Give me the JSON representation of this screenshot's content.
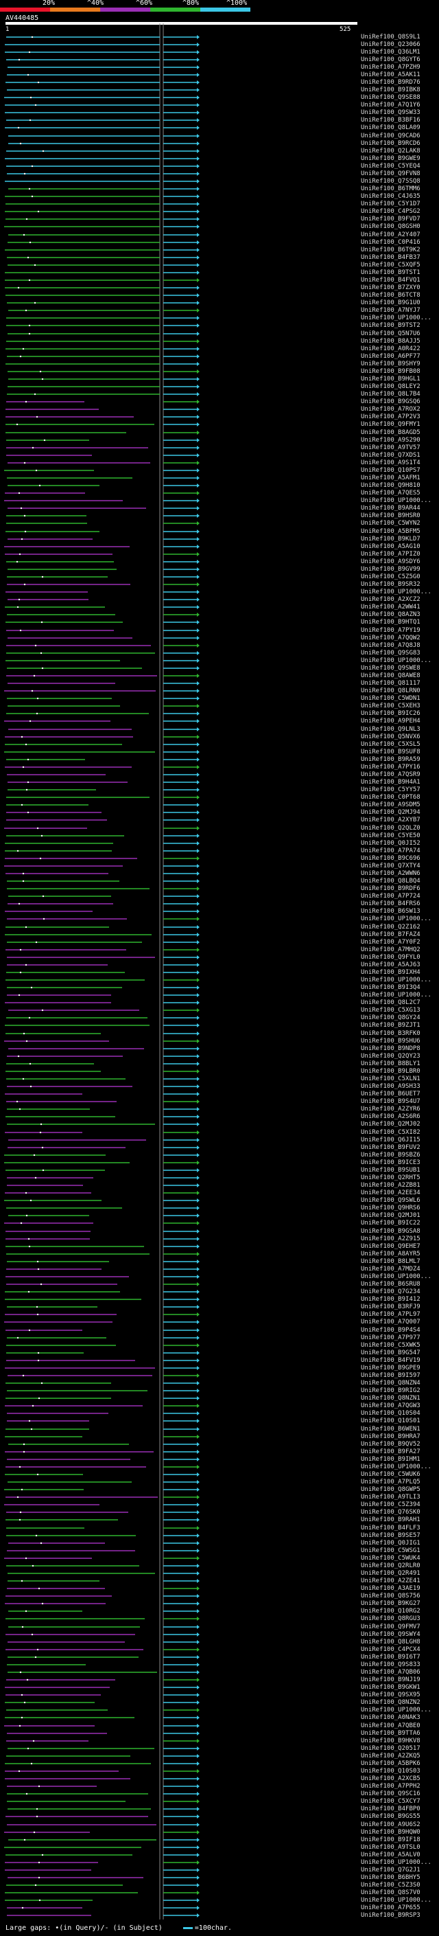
{
  "legend": {
    "labels": [
      "20%",
      "^40%",
      "^60%",
      "^80%",
      "^100%"
    ],
    "colors": [
      "#e8142a",
      "#e87a1e",
      "#9b2fb5",
      "#2fb52f",
      "#3cc7e6"
    ]
  },
  "query": {
    "name": "AV440485",
    "start": "1",
    "end": "525"
  },
  "hits": [
    "UniRef100_Q8S9L1",
    "UniRef100_Q23066",
    "UniRef100_Q36LM1",
    "UniRef100_Q8GYT6",
    "UniRef100_A7PZH9",
    "UniRef100_A5AK11",
    "UniRef100_B9RD76",
    "UniRef100_B9IBK8",
    "UniRef100_Q9SE88",
    "UniRef100_A7Q1Y6",
    "UniRef100_Q9SW33",
    "UniRef100_B3BF16",
    "UniRef100_Q8LA09",
    "UniRef100_Q9CAD6",
    "UniRef100_B9RCD6",
    "UniRef100_Q2LAK8",
    "UniRef100_B9GWE9",
    "UniRef100_C5YEQ4",
    "UniRef100_Q9FVN8",
    "UniRef100_Q7SSQ8",
    "UniRef100_B6TMM6",
    "UniRef100_C4J635",
    "UniRef100_C5Y1D7",
    "UniRef100_C4PSG2",
    "UniRef100_B9FVD7",
    "UniRef100_Q8GSH0",
    "UniRef100_A2Y407",
    "UniRef100_C0P416",
    "UniRef100_B6T9K2",
    "UniRef100_B4FB37",
    "UniRef100_C5XQF5",
    "UniRef100_B9TST1",
    "UniRef100_B4FVQ1",
    "UniRef100_B7ZXY0",
    "UniRef100_B6TCT8",
    "UniRef100_B9G1U0",
    "UniRef100_A7NYJ7",
    "UniRef100_UP1000...",
    "UniRef100_B9TST2",
    "UniRef100_Q5N7U6",
    "UniRef100_B8AJJ5",
    "UniRef100_A0R422",
    "UniRef100_A6PF77",
    "UniRef100_B9SHY9",
    "UniRef100_B9FB08",
    "UniRef100_B9HGL1",
    "UniRef100_Q8LEY2",
    "UniRef100_Q8L7B4",
    "UniRef100_B9GSQ6",
    "UniRef100_A7ROX2",
    "UniRef100_A7P2V3",
    "UniRef100_Q9FMY1",
    "UniRef100_B8AGD5",
    "UniRef100_A9S290",
    "UniRef100_A9TV57",
    "UniRef100_Q7XDS1",
    "UniRef100_A9S1T4",
    "UniRef100_Q10PS7",
    "UniRef100_A5AFM1",
    "UniRef100_Q9H810",
    "UniRef100_A7QES5",
    "UniRef100_UP1000...",
    "UniRef100_B9AR44",
    "UniRef100_B9HSR0",
    "UniRef100_C5WYN2",
    "UniRef100_A5BFM5",
    "UniRef100_B9KLD7",
    "UniRef100_A5AG10",
    "UniRef100_A7PIZ0",
    "UniRef100_A9SDY6",
    "UniRef100_B9GV99",
    "UniRef100_C5Z5G0",
    "UniRef100_B9SR32",
    "UniRef100_UP1000...",
    "UniRef100_A2XCZ2",
    "UniRef100_A2WW41",
    "UniRef100_Q8AZN3",
    "UniRef100_B9HTQ1",
    "UniRef100_A7PY19",
    "UniRef100_A7QQW2",
    "UniRef100_A7Q8J8",
    "UniRef100_Q9SG83",
    "UniRef100_UP1000...",
    "UniRef100_Q9SWE8",
    "UniRef100_Q8AWE8",
    "UniRef100_Q81117",
    "UniRef100_Q8LRN0",
    "UniRef100_C5WDN1",
    "UniRef100_C5XEH3",
    "UniRef100_B9IC26",
    "UniRef100_A9PEH4",
    "UniRef100_Q9LNL3",
    "UniRef100_Q5NVX6",
    "UniRef100_C5XSL5",
    "UniRef100_B9SUF8",
    "UniRef100_B9RA59",
    "UniRef100_A7PY16",
    "UniRef100_A7QSR9",
    "UniRef100_B9H4A1",
    "UniRef100_C5YY57",
    "UniRef100_C0PT68",
    "UniRef100_A9SDM5",
    "UniRef100_Q2MJ94",
    "UniRef100_A2XYB7",
    "UniRef100_Q2QLZ0",
    "UniRef100_C5YE50",
    "UniRef100_Q0JI52",
    "UniRef100_A7PA74",
    "UniRef100_B9C696",
    "UniRef100_Q7XTY4",
    "UniRef100_A2WWN6",
    "UniRef100_Q8LBQ4",
    "UniRef100_B9RDF6",
    "UniRef100_A7P724",
    "UniRef100_B4FRS6",
    "UniRef100_B6SW13",
    "UniRef100_UP1000...",
    "UniRef100_Q2Z162",
    "UniRef100_B7FAZ4",
    "UniRef100_A7Y0F2",
    "UniRef100_A7MHQ2",
    "UniRef100_Q9FYL0",
    "UniRef100_A5AJ63",
    "UniRef100_B9IXH4",
    "UniRef100_UP1000...",
    "UniRef100_B9I3Q4",
    "UniRef100_UP1000...",
    "UniRef100_Q8L2C7",
    "UniRef100_C5XG13",
    "UniRef100_Q8GY24",
    "UniRef100_B9ZJT1",
    "UniRef100_B3RFK0",
    "UniRef100_B9SHU6",
    "UniRef100_B9NDP8",
    "UniRef100_Q2QY23",
    "UniRef100_B8BLY1",
    "UniRef100_B9LBR0",
    "UniRef100_C5XLN1",
    "UniRef100_A9SH33",
    "UniRef100_B6UET7",
    "UniRef100_B9S4U7",
    "UniRef100_A2ZYR6",
    "UniRef100_A2S6R6",
    "UniRef100_Q2MJ02",
    "UniRef100_C5XI82",
    "UniRef100_Q6JI15",
    "UniRef100_B9FUV2",
    "UniRef100_B9SBZ6",
    "UniRef100_B9ICE3",
    "UniRef100_B9SUB1",
    "UniRef100_Q2RHT5",
    "UniRef100_A2ZB81",
    "UniRef100_A2EE34",
    "UniRef100_Q9SWL6",
    "UniRef100_Q9HRS6",
    "UniRef100_Q2MJ01",
    "UniRef100_B9IC22",
    "UniRef100_B9GSA8",
    "UniRef100_A2Z915",
    "UniRef100_Q9EHE7",
    "UniRef100_A8AYR5",
    "UniRef100_B8LML7",
    "UniRef100_A7MDZ4",
    "UniRef100_UP1000...",
    "UniRef100_B6SRU8",
    "UniRef100_Q7G234",
    "UniRef100_B9I412",
    "UniRef100_B3RFJ9",
    "UniRef100_A7PL97",
    "UniRef100_A7Q007",
    "UniRef100_B9P4S4",
    "UniRef100_A7P977",
    "UniRef100_C5XWK5",
    "UniRef100_B9G547",
    "UniRef100_B4FV19",
    "UniRef100_B9GPE9",
    "UniRef100_B9I597",
    "UniRef100_Q8NZN4",
    "UniRef100_B9RIG2",
    "UniRef100_Q8NZN1",
    "UniRef100_A7QGW3",
    "UniRef100_Q10S04",
    "UniRef100_Q10S01",
    "UniRef100_B6WEN1",
    "UniRef100_B9HRA7",
    "UniRef100_B9QV52",
    "UniRef100_B9FA27",
    "UniRef100_B9IHM1",
    "UniRef100_UP1000...",
    "UniRef100_C5WUK6",
    "UniRef100_A7PLQ5",
    "UniRef100_Q8GWP5",
    "UniRef100_A9TLI3",
    "UniRef100_C5Z394",
    "UniRef100_Q76SK0",
    "UniRef100_B9RAH1",
    "UniRef100_B4FLF3",
    "UniRef100_B9SE57",
    "UniRef100_Q0JIG1",
    "UniRef100_C5WSG1",
    "UniRef100_C5WUK4",
    "UniRef100_Q2RLR0",
    "UniRef100_Q2R491",
    "UniRef100_A2ZE41",
    "UniRef100_A3AE19",
    "UniRef100_Q8S756",
    "UniRef100_B9KG27",
    "UniRef100_Q10RG2",
    "UniRef100_Q8RGU3",
    "UniRef100_Q9FMV7",
    "UniRef100_Q9SWY4",
    "UniRef100_Q8LGH8",
    "UniRef100_C4PCX4",
    "UniRef100_B9I6T7",
    "UniRef100_Q9S833",
    "UniRef100_A7QB06",
    "UniRef100_B9NJ19",
    "UniRef100_B9GKW1",
    "UniRef100_Q9SX95",
    "UniRef100_Q8NZN2",
    "UniRef100_UP1000...",
    "UniRef100_A0NAK3",
    "UniRef100_A7QBE0",
    "UniRef100_B9TTA6",
    "UniRef100_B9HKV8",
    "UniRef100_Q20517",
    "UniRef100_A2ZKQ5",
    "UniRef100_A5BPK6",
    "UniRef100_Q10S03",
    "UniRef100_A2XCB5",
    "UniRef100_A7PPH2",
    "UniRef100_Q9SC16",
    "UniRef100_C5XCY7",
    "UniRef100_B4FBP0",
    "UniRef100_B9GS55",
    "UniRef100_A9U6S2",
    "UniRef100_B9HQW0",
    "UniRef100_B9IF18",
    "UniRef100_A9TSL0",
    "UniRef100_A5ALV0",
    "UniRef100_UP1000...",
    "UniRef100_Q7G2J1",
    "UniRef100_B6BHY5",
    "UniRef100_C5Z3S0",
    "UniRef100_Q8S7V0",
    "UniRef100_UP1000...",
    "UniRef100_A7P655",
    "UniRef100_B9RSP3"
  ],
  "footer": {
    "text": "Large gaps: •(in Query)/- (in Subject)",
    "scale": "=100char."
  }
}
